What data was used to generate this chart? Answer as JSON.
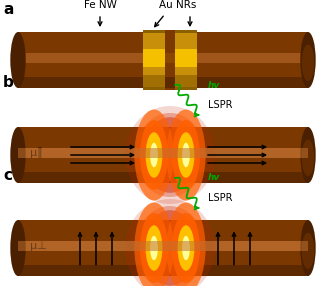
{
  "bg": "#ffffff",
  "fe_dark": "#4a2000",
  "fe_mid": "#7B3800",
  "fe_light": "#9B5500",
  "fe_top": "#c07030",
  "au_outer": "#8B6000",
  "au_mid": "#c8900a",
  "au_bright": "#F5C000",
  "au_dark_stripe": "#7B5000",
  "glow_red": "#cc2200",
  "glow_orange": "#FF6000",
  "glow_yellow": "#FFC000",
  "glow_white": "#FFFF99",
  "green": "#00aa00",
  "black": "#000000",
  "label_a": "a",
  "label_b": "b",
  "label_c": "c",
  "fe_nw": "Fe NW",
  "au_nrs": "Au NRs",
  "lspr": "LSPR",
  "hv": "hv",
  "mu_par": "μ∥",
  "mu_perp": "μ⊥"
}
